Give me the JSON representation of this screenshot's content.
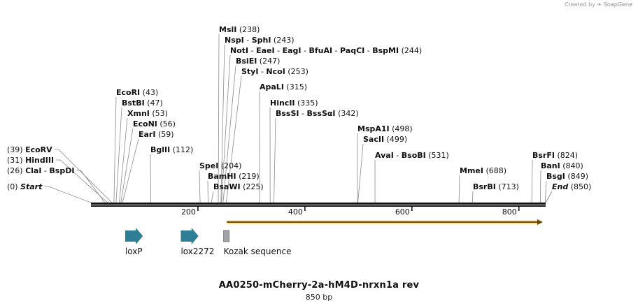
{
  "credit": {
    "prefix": "Created by",
    "brand": "SnapGene"
  },
  "title": "AA0250-mCherry-2a-hM4D-nrxn1a rev",
  "subtitle": "850 bp",
  "length": 850,
  "ticks": [
    200,
    400,
    600,
    800
  ],
  "cut_sites": [
    {
      "id": "start",
      "position": 0,
      "pos_label": "(0)",
      "names": [
        "Start"
      ],
      "italic": true,
      "side": "left"
    },
    {
      "id": "clai",
      "position": 26,
      "pos_label": "(26)",
      "names": [
        "ClaI",
        "BspDI"
      ],
      "side": "left"
    },
    {
      "id": "hindiii",
      "position": 31,
      "pos_label": "(31)",
      "names": [
        "HindIII"
      ],
      "side": "left"
    },
    {
      "id": "ecorv",
      "position": 39,
      "pos_label": "(39)",
      "names": [
        "EcoRV"
      ],
      "side": "left"
    },
    {
      "id": "ecori",
      "position": 43,
      "pos_label": "(43)",
      "names": [
        "EcoRI"
      ],
      "side": "right"
    },
    {
      "id": "bstbi",
      "position": 47,
      "pos_label": "(47)",
      "names": [
        "BstBI"
      ],
      "side": "right"
    },
    {
      "id": "xmni",
      "position": 53,
      "pos_label": "(53)",
      "names": [
        "XmnI"
      ],
      "side": "right"
    },
    {
      "id": "econi",
      "position": 56,
      "pos_label": "(56)",
      "names": [
        "EcoNI"
      ],
      "side": "right"
    },
    {
      "id": "eari",
      "position": 59,
      "pos_label": "(59)",
      "names": [
        "EarI"
      ],
      "side": "right"
    },
    {
      "id": "bglii",
      "position": 112,
      "pos_label": "(112)",
      "names": [
        "BglII"
      ],
      "side": "right"
    },
    {
      "id": "spei",
      "position": 204,
      "pos_label": "(204)",
      "names": [
        "SpeI"
      ],
      "side": "right"
    },
    {
      "id": "bamhi",
      "position": 219,
      "pos_label": "(219)",
      "names": [
        "BamHI"
      ],
      "side": "right"
    },
    {
      "id": "bsawi",
      "position": 225,
      "pos_label": "(225)",
      "names": [
        "BsaWI"
      ],
      "side": "right"
    },
    {
      "id": "msli",
      "position": 238,
      "pos_label": "(238)",
      "names": [
        "MslI"
      ],
      "side": "right"
    },
    {
      "id": "nspi",
      "position": 243,
      "pos_label": "(243)",
      "names": [
        "NspI",
        "SphI"
      ],
      "side": "right"
    },
    {
      "id": "noti",
      "position": 244,
      "pos_label": "(244)",
      "names": [
        "NotI",
        "EaeI",
        "EagI",
        "BfuAI",
        "PaqCI",
        "BspMI"
      ],
      "side": "right"
    },
    {
      "id": "bslei",
      "position": 247,
      "pos_label": "(247)",
      "names": [
        "BsiEI"
      ],
      "side": "right"
    },
    {
      "id": "styi",
      "position": 253,
      "pos_label": "(253)",
      "names": [
        "StyI",
        "NcoI"
      ],
      "side": "right"
    },
    {
      "id": "apali",
      "position": 315,
      "pos_label": "(315)",
      "names": [
        "ApaLI"
      ],
      "side": "right"
    },
    {
      "id": "hincii",
      "position": 335,
      "pos_label": "(335)",
      "names": [
        "HincII"
      ],
      "side": "right"
    },
    {
      "id": "bsssi",
      "position": 342,
      "pos_label": "(342)",
      "names": [
        "BssSI",
        "BssSαI"
      ],
      "side": "right"
    },
    {
      "id": "mspa1i",
      "position": 498,
      "pos_label": "(498)",
      "names": [
        "MspA1I"
      ],
      "side": "right"
    },
    {
      "id": "sacii",
      "position": 499,
      "pos_label": "(499)",
      "names": [
        "SacII"
      ],
      "side": "right"
    },
    {
      "id": "avai",
      "position": 531,
      "pos_label": "(531)",
      "names": [
        "AvaI",
        "BsoBI"
      ],
      "side": "right"
    },
    {
      "id": "mmei",
      "position": 688,
      "pos_label": "(688)",
      "names": [
        "MmeI"
      ],
      "side": "right"
    },
    {
      "id": "bsrbi",
      "position": 713,
      "pos_label": "(713)",
      "names": [
        "BsrBI"
      ],
      "side": "right"
    },
    {
      "id": "bsrfi",
      "position": 824,
      "pos_label": "(824)",
      "names": [
        "BsrFI"
      ],
      "side": "right"
    },
    {
      "id": "bani",
      "position": 840,
      "pos_label": "(840)",
      "names": [
        "BanI"
      ],
      "side": "right"
    },
    {
      "id": "bsgi",
      "position": 849,
      "pos_label": "(849)",
      "names": [
        "BsgI"
      ],
      "side": "right"
    },
    {
      "id": "end",
      "position": 850,
      "pos_label": "(850)",
      "names": [
        "End"
      ],
      "italic": true,
      "side": "right"
    }
  ],
  "orf": {
    "start": 254,
    "end": 850,
    "color": "#e8a000"
  },
  "features": [
    {
      "id": "loxp",
      "label": "loxP",
      "type": "arrow",
      "start": 64,
      "end": 97,
      "color": "#2e7f95"
    },
    {
      "id": "lox2272",
      "label": "lox2272",
      "type": "arrow",
      "start": 168,
      "end": 201,
      "color": "#2e7f95"
    },
    {
      "id": "kozak",
      "label": "Kozak sequence",
      "type": "box",
      "start": 248,
      "end": 259,
      "color": "#a0a4a8"
    }
  ]
}
